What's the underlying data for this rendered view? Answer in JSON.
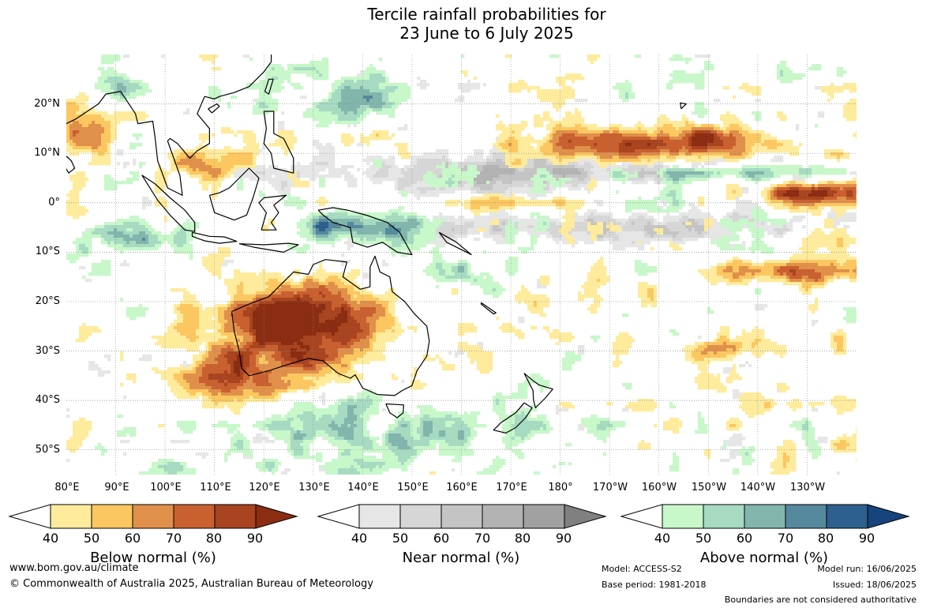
{
  "title": {
    "line1": "Tercile rainfall probabilities for",
    "line2": "23 June to 6 July 2025"
  },
  "map": {
    "latitude_labels": [
      "20°N",
      "10°N",
      "0°",
      "10°S",
      "20°S",
      "30°S",
      "40°S",
      "50°S"
    ],
    "longitude_labels": [
      "80°E",
      "90°E",
      "100°E",
      "110°E",
      "120°E",
      "130°E",
      "140°E",
      "150°E",
      "160°E",
      "170°E",
      "180°",
      "170°W",
      "160°W",
      "150°W",
      "140°W",
      "130°W"
    ],
    "extent": {
      "lon_min": 80,
      "lon_max": 240,
      "lat_min": -55,
      "lat_max": 30
    }
  },
  "legends": [
    {
      "name": "below",
      "title": "Below normal (%)",
      "ticks": [
        "40",
        "50",
        "60",
        "70",
        "80",
        "90"
      ],
      "colors": [
        "#ffffff",
        "#feeb9c",
        "#fcc760",
        "#e0904a",
        "#c9602f",
        "#a8441f",
        "#8b2d12"
      ]
    },
    {
      "name": "near",
      "title": "Near normal (%)",
      "ticks": [
        "40",
        "50",
        "60",
        "70",
        "80",
        "90"
      ],
      "colors": [
        "#ffffff",
        "#e6e6e6",
        "#d6d6d6",
        "#c4c4c4",
        "#b3b3b3",
        "#a1a1a1",
        "#808080"
      ]
    },
    {
      "name": "above",
      "title": "Above normal (%)",
      "ticks": [
        "40",
        "50",
        "60",
        "70",
        "80",
        "90"
      ],
      "colors": [
        "#ffffff",
        "#c8f7ca",
        "#a6dbc2",
        "#82b6ac",
        "#55899e",
        "#2d5f8f",
        "#16447c"
      ]
    }
  ],
  "footer": {
    "website": "www.bom.gov.au/climate",
    "copyright": "© Commonwealth of Australia 2025, Australian Bureau of Meteorology",
    "model": "Model: ACCESS-S2",
    "base_period": "Base period: 1981-2018",
    "model_run": "Model run: 16/06/2025",
    "issued": "Issued: 18/06/2025",
    "disclaimer": "Boundaries are not considered authoritative"
  },
  "colors": {
    "grid": "#888888",
    "coast": "#000000",
    "background": "#ffffff"
  }
}
